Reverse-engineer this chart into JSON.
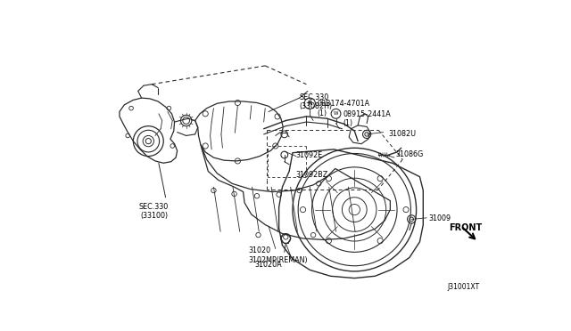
{
  "bg_color": "#ffffff",
  "figsize": [
    6.4,
    3.72
  ],
  "dpi": 100,
  "line_color": "#2a2a2a",
  "text_color": "#000000",
  "labels": {
    "sec330_33100": "SEC.330\n(33100)",
    "sec330_33082h": "SEC.330\n(33082H)",
    "part_08b174": "08B174-4701A\n(1)",
    "part_08915": "08915-2441A\n(1)",
    "part_31082u": "31082U",
    "part_31086g": "31086G",
    "part_31092e": "31092E",
    "part_31092bz": "31092BZ",
    "part_31009": "31009",
    "part_31020": "31020\n3102MP(REMAN)",
    "part_31020a": "31020A",
    "front": "FRONT",
    "diagram_id": "J31001XT"
  }
}
